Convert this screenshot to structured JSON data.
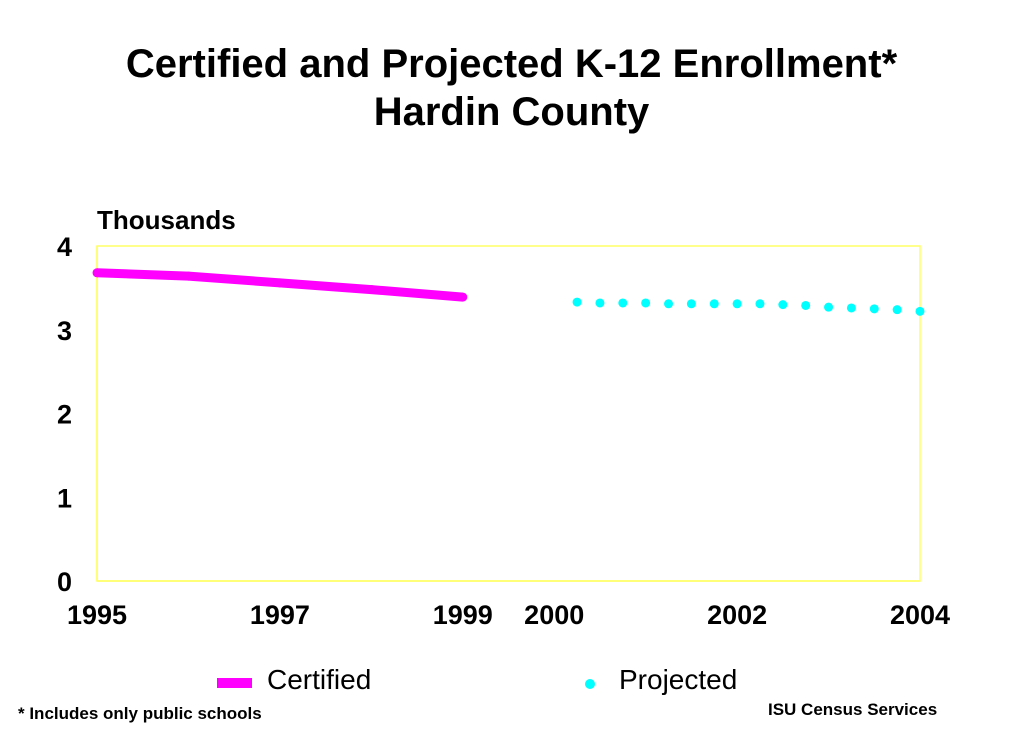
{
  "title": {
    "line1": "Certified and Projected K-12 Enrollment*",
    "line2": "Hardin County"
  },
  "footnote": "* Includes only public schools",
  "credit": "ISU Census Services",
  "colors": {
    "certified": "#ff00ff",
    "projected": "#00ffff",
    "plot_border": "#ffff66"
  },
  "chart_data": {
    "type": "line",
    "ylabel": "Thousands",
    "ylim": [
      0,
      4
    ],
    "xlim": [
      1995,
      2004
    ],
    "y_ticks": [
      "0",
      "1",
      "2",
      "3",
      "4"
    ],
    "x_ticks": [
      "1995",
      "1997",
      "1999",
      "2000",
      "2002",
      "2004"
    ],
    "grid": false,
    "legend_position": "bottom",
    "series": [
      {
        "name": "Certified",
        "style": "solid",
        "x": [
          1995,
          1996,
          1997,
          1998,
          1999
        ],
        "y": [
          3.68,
          3.64,
          3.56,
          3.48,
          3.39
        ]
      },
      {
        "name": "Projected",
        "style": "dotted",
        "x": [
          2000.25,
          2000.5,
          2000.75,
          2001,
          2001.25,
          2001.5,
          2001.75,
          2002,
          2002.25,
          2002.5,
          2002.75,
          2003,
          2003.25,
          2003.5,
          2003.75,
          2004
        ],
        "y": [
          3.33,
          3.32,
          3.32,
          3.32,
          3.31,
          3.31,
          3.31,
          3.31,
          3.31,
          3.3,
          3.29,
          3.27,
          3.26,
          3.25,
          3.24,
          3.22
        ]
      }
    ]
  }
}
